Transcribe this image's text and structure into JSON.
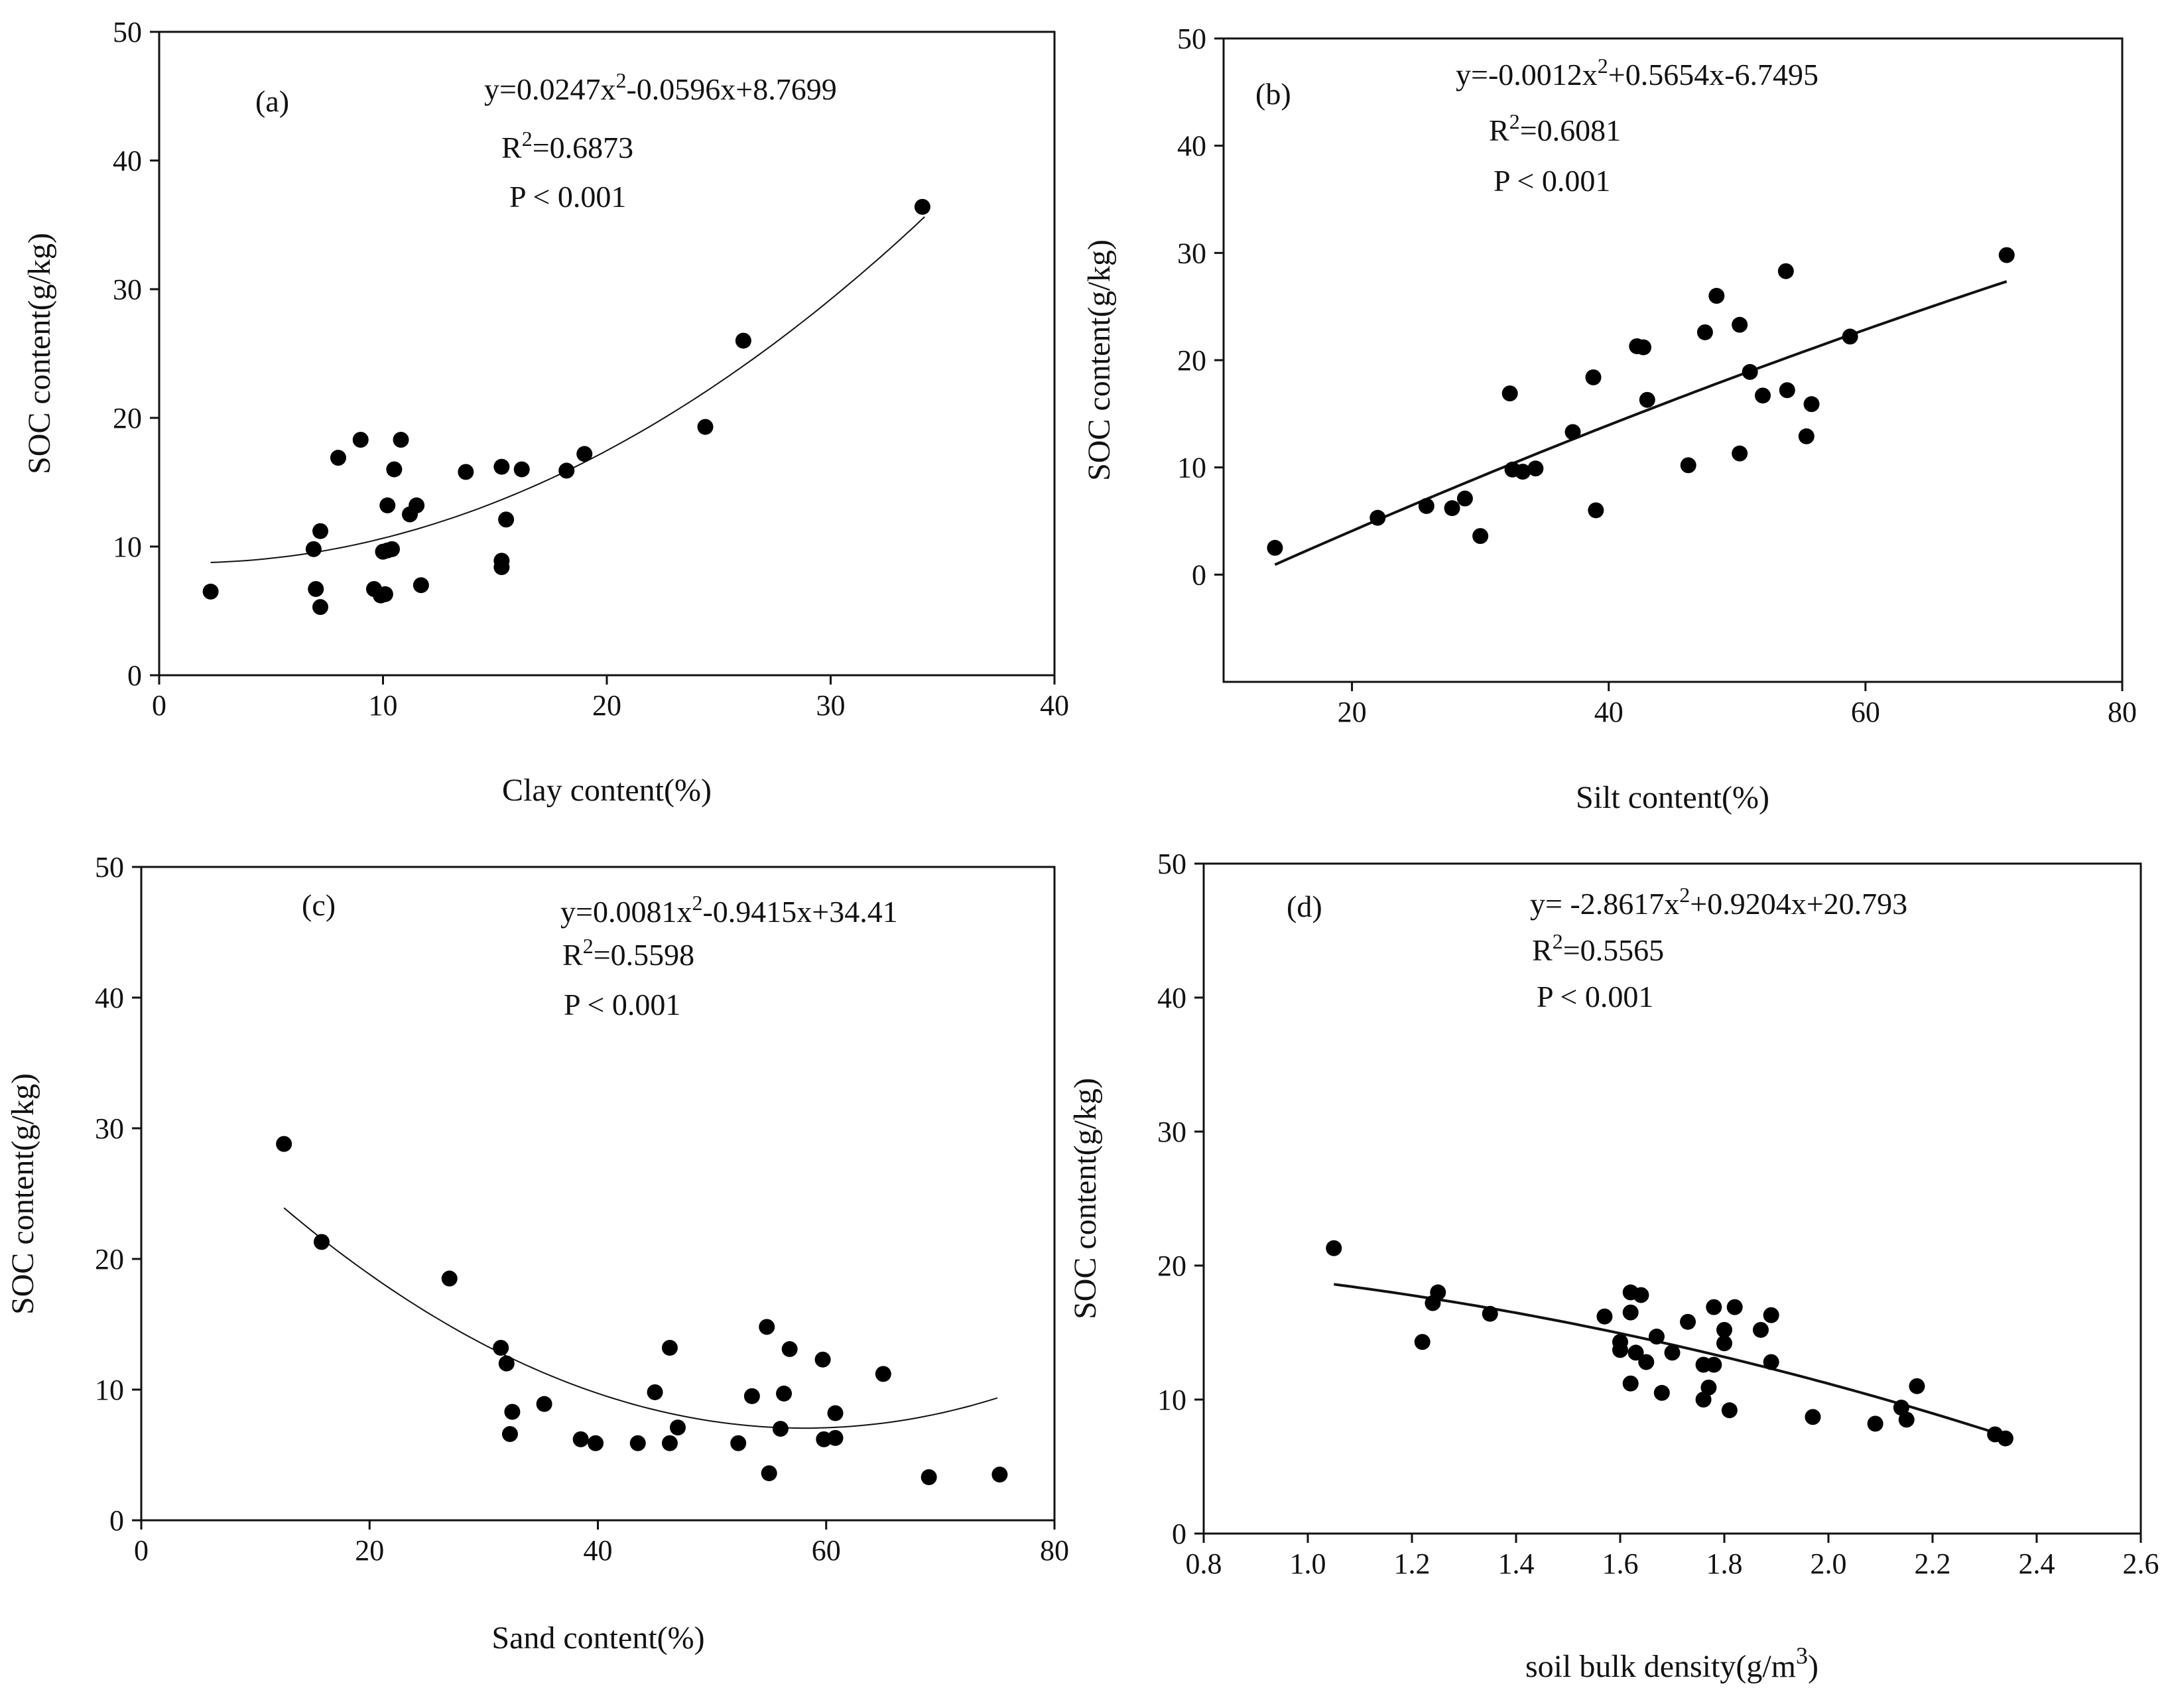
{
  "chart_data": [
    {
      "type": "scatter",
      "panel": "(a)",
      "xlabel": "Clay content(%)",
      "ylabel": "SOC content(g/kg)",
      "xlim": [
        0,
        40
      ],
      "ylim": [
        0,
        50
      ],
      "xticks": [
        0,
        10,
        20,
        30,
        40
      ],
      "yticks": [
        0,
        10,
        20,
        30,
        40,
        50
      ],
      "equation": {
        "base": "y=0.0247x",
        "sup": "2",
        "rest": "-0.0596x+8.7699"
      },
      "r2": {
        "base": "R",
        "sup": "2",
        "rest": "=0.6873"
      },
      "p": "P < 0.001",
      "fit": {
        "coef": [
          0.0247,
          -0.0596,
          8.7699
        ],
        "x_range": [
          2.3,
          34.2
        ],
        "stroke_width": 2
      },
      "points": [
        [
          2.3,
          6.5
        ],
        [
          6.9,
          9.8
        ],
        [
          7.0,
          6.7
        ],
        [
          7.2,
          11.2
        ],
        [
          7.2,
          5.3
        ],
        [
          8.0,
          16.9
        ],
        [
          9.0,
          18.3
        ],
        [
          9.6,
          6.7
        ],
        [
          9.9,
          6.2
        ],
        [
          10.0,
          9.6
        ],
        [
          10.1,
          6.3
        ],
        [
          10.2,
          9.7
        ],
        [
          10.2,
          13.2
        ],
        [
          10.4,
          9.8
        ],
        [
          10.5,
          16.0
        ],
        [
          10.8,
          18.3
        ],
        [
          11.2,
          12.5
        ],
        [
          11.5,
          13.2
        ],
        [
          11.7,
          7.0
        ],
        [
          13.7,
          15.8
        ],
        [
          15.3,
          16.2
        ],
        [
          15.3,
          8.4
        ],
        [
          15.3,
          8.9
        ],
        [
          15.5,
          12.1
        ],
        [
          16.2,
          16.0
        ],
        [
          18.2,
          15.9
        ],
        [
          19.0,
          17.2
        ],
        [
          24.4,
          19.3
        ],
        [
          26.1,
          26.0
        ],
        [
          34.1,
          36.4
        ]
      ]
    },
    {
      "type": "scatter",
      "panel": "(b)",
      "xlabel": "Silt content(%)",
      "ylabel": "SOC content(g/kg)",
      "xlim": [
        10,
        80
      ],
      "ylim": [
        -10,
        50
      ],
      "xticks": [
        20,
        40,
        60,
        80
      ],
      "yticks": [
        0,
        10,
        20,
        30,
        40,
        50
      ],
      "equation": {
        "base": "y=-0.0012x",
        "sup": "2",
        "rest": "+0.5654x-6.7495"
      },
      "r2": {
        "base": "R",
        "sup": "2",
        "rest": "=0.6081"
      },
      "p": "P < 0.001",
      "fit": {
        "coef": [
          -0.0012,
          0.5654,
          -6.7495
        ],
        "x_range": [
          14,
          71
        ],
        "stroke_width": 4
      },
      "points": [
        [
          14.0,
          2.5
        ],
        [
          22.0,
          5.3
        ],
        [
          25.8,
          6.4
        ],
        [
          27.8,
          6.2
        ],
        [
          28.8,
          7.1
        ],
        [
          30.0,
          3.6
        ],
        [
          32.3,
          16.9
        ],
        [
          32.5,
          9.8
        ],
        [
          33.3,
          9.6
        ],
        [
          34.3,
          9.9
        ],
        [
          37.2,
          13.3
        ],
        [
          38.8,
          18.4
        ],
        [
          39.0,
          6.0
        ],
        [
          42.2,
          21.3
        ],
        [
          42.7,
          21.2
        ],
        [
          43.0,
          16.3
        ],
        [
          46.2,
          10.2
        ],
        [
          47.5,
          22.6
        ],
        [
          48.4,
          26.0
        ],
        [
          50.2,
          23.3
        ],
        [
          50.2,
          11.3
        ],
        [
          51.0,
          18.9
        ],
        [
          52.0,
          16.7
        ],
        [
          53.8,
          28.3
        ],
        [
          53.9,
          17.2
        ],
        [
          55.4,
          12.9
        ],
        [
          55.8,
          15.9
        ],
        [
          58.8,
          22.2
        ],
        [
          71.0,
          29.8
        ]
      ]
    },
    {
      "type": "scatter",
      "panel": "(c)",
      "xlabel": "Sand content(%)",
      "ylabel": "SOC content(g/kg)",
      "xlim": [
        0,
        80
      ],
      "ylim": [
        0,
        50
      ],
      "xticks": [
        0,
        20,
        40,
        60,
        80
      ],
      "yticks": [
        0,
        10,
        20,
        30,
        40,
        50
      ],
      "equation": {
        "base": "y=0.0081x",
        "sup": "2",
        "rest": "-0.9415x+34.41"
      },
      "r2": {
        "base": "R",
        "sup": "2",
        "rest": "=0.5598"
      },
      "p": "P < 0.001",
      "fit": {
        "coef": [
          0.0081,
          -0.9415,
          34.41
        ],
        "x_range": [
          12.5,
          75
        ],
        "stroke_width": 2
      },
      "points": [
        [
          12.5,
          28.8
        ],
        [
          15.8,
          21.3
        ],
        [
          27.0,
          18.5
        ],
        [
          31.5,
          13.2
        ],
        [
          32.0,
          12.0
        ],
        [
          32.3,
          6.6
        ],
        [
          32.5,
          8.3
        ],
        [
          35.3,
          8.9
        ],
        [
          38.5,
          6.2
        ],
        [
          39.8,
          5.9
        ],
        [
          43.5,
          5.9
        ],
        [
          45.0,
          9.8
        ],
        [
          46.3,
          13.2
        ],
        [
          46.3,
          5.9
        ],
        [
          47.0,
          7.1
        ],
        [
          52.3,
          5.9
        ],
        [
          53.5,
          9.5
        ],
        [
          54.8,
          14.8
        ],
        [
          55.0,
          3.6
        ],
        [
          56.0,
          7.0
        ],
        [
          56.3,
          9.7
        ],
        [
          56.8,
          13.1
        ],
        [
          59.7,
          12.3
        ],
        [
          59.8,
          6.2
        ],
        [
          60.8,
          8.2
        ],
        [
          60.8,
          6.3
        ],
        [
          65.0,
          11.2
        ],
        [
          69.0,
          3.3
        ],
        [
          75.2,
          3.5
        ]
      ]
    },
    {
      "type": "scatter",
      "panel": "(d)",
      "xlabel": "soil bulk density(g/m",
      "xlabel_sup": "3",
      "xlabel_end": ")",
      "ylabel": "SOC content(g/kg)",
      "xlim": [
        0.8,
        2.6
      ],
      "ylim": [
        0,
        50
      ],
      "xticks": [
        "0.8",
        "1.0",
        "1.2",
        "1.4",
        "1.6",
        "1.8",
        "2.0",
        "2.2",
        "2.4",
        "2.6"
      ],
      "yticks": [
        0,
        10,
        20,
        30,
        40,
        50
      ],
      "equation": {
        "base": "y= -2.8617x",
        "sup": "2",
        "rest": "+0.9204x+20.793"
      },
      "r2": {
        "base": "R",
        "sup": "2",
        "rest": "=0.5565"
      },
      "p": "P < 0.001",
      "fit": {
        "coef": [
          -2.8617,
          0.9204,
          20.793
        ],
        "x_range": [
          1.05,
          2.33
        ],
        "stroke_width": 4
      },
      "points": [
        [
          1.05,
          21.3
        ],
        [
          1.22,
          14.3
        ],
        [
          1.24,
          17.2
        ],
        [
          1.25,
          18.0
        ],
        [
          1.35,
          16.4
        ],
        [
          1.57,
          16.2
        ],
        [
          1.6,
          14.3
        ],
        [
          1.6,
          13.7
        ],
        [
          1.62,
          18.0
        ],
        [
          1.62,
          11.2
        ],
        [
          1.62,
          16.5
        ],
        [
          1.63,
          13.5
        ],
        [
          1.64,
          17.8
        ],
        [
          1.65,
          12.8
        ],
        [
          1.67,
          14.7
        ],
        [
          1.68,
          10.5
        ],
        [
          1.7,
          13.5
        ],
        [
          1.73,
          15.8
        ],
        [
          1.76,
          12.6
        ],
        [
          1.76,
          10.0
        ],
        [
          1.77,
          10.9
        ],
        [
          1.78,
          16.9
        ],
        [
          1.78,
          12.6
        ],
        [
          1.8,
          15.2
        ],
        [
          1.8,
          14.2
        ],
        [
          1.81,
          9.2
        ],
        [
          1.82,
          16.9
        ],
        [
          1.87,
          15.2
        ],
        [
          1.89,
          16.3
        ],
        [
          1.89,
          12.8
        ],
        [
          1.97,
          8.7
        ],
        [
          2.09,
          8.2
        ],
        [
          2.14,
          9.4
        ],
        [
          2.15,
          8.5
        ],
        [
          2.17,
          11.0
        ],
        [
          2.32,
          7.4
        ],
        [
          2.34,
          7.1
        ]
      ]
    }
  ]
}
